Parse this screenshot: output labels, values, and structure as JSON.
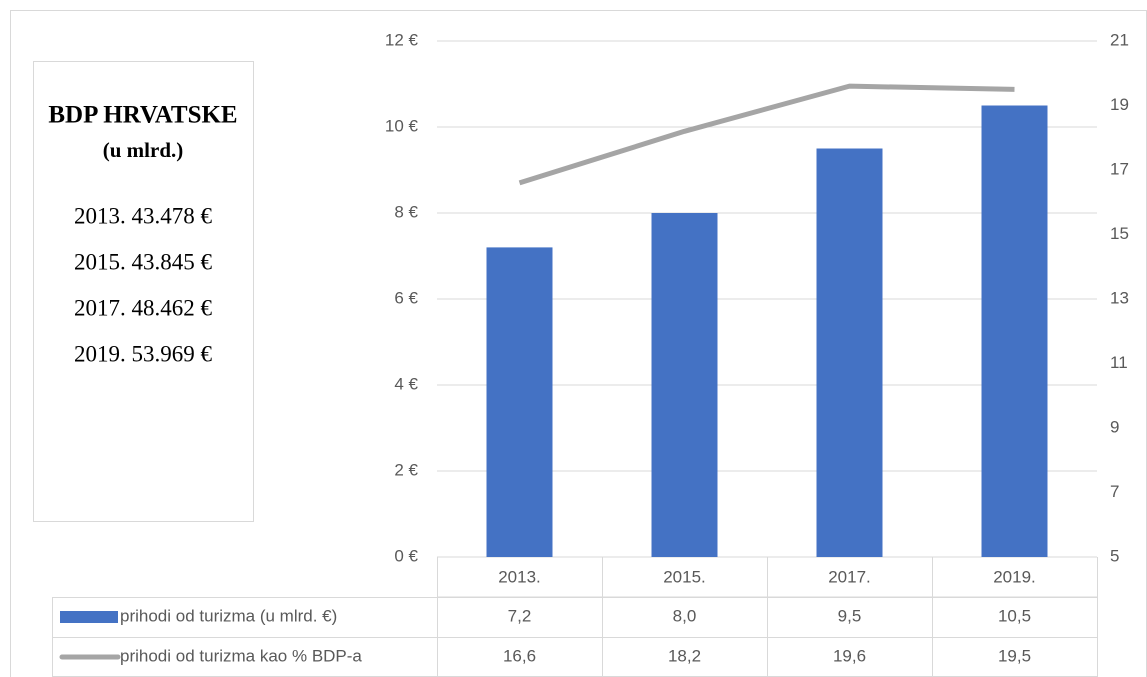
{
  "chart_data": {
    "type": "bar",
    "categories": [
      "2013.",
      "2015.",
      "2017.",
      "2019."
    ],
    "series": [
      {
        "name": "prihodi od turizma (u mlrd. €)",
        "type": "bar",
        "color": "#4472c4",
        "values": [
          7.2,
          8.0,
          9.5,
          10.5
        ],
        "value_labels": [
          "7,2",
          "8,0",
          "9,5",
          "10,5"
        ]
      },
      {
        "name": "prihodi od turizma kao % BDP-a",
        "type": "line",
        "axis": "y2",
        "color": "#a5a5a5",
        "values": [
          16.6,
          18.2,
          19.6,
          19.5
        ],
        "value_labels": [
          "16,6",
          "18,2",
          "19,6",
          "19,5"
        ]
      }
    ],
    "ylim": [
      0,
      12
    ],
    "yticks": [
      {
        "value": 0,
        "label": "0 €"
      },
      {
        "value": 2,
        "label": "2 €"
      },
      {
        "value": 4,
        "label": "4 €"
      },
      {
        "value": 6,
        "label": "6 €"
      },
      {
        "value": 8,
        "label": "8 €"
      },
      {
        "value": 10,
        "label": "10 €"
      },
      {
        "value": 12,
        "label": "12 €"
      }
    ],
    "y2lim": [
      5,
      21
    ],
    "y2ticks": [
      5,
      7,
      9,
      11,
      13,
      15,
      17,
      19,
      21
    ],
    "grid": true,
    "textbox": {
      "title": "BDP HRVATSKE",
      "subtitle": "(u mlrd.)",
      "lines": [
        "2013. 43.478 €",
        "2015. 43.845 €",
        "2017. 48.462 €",
        "2019. 53.969 €"
      ]
    }
  }
}
